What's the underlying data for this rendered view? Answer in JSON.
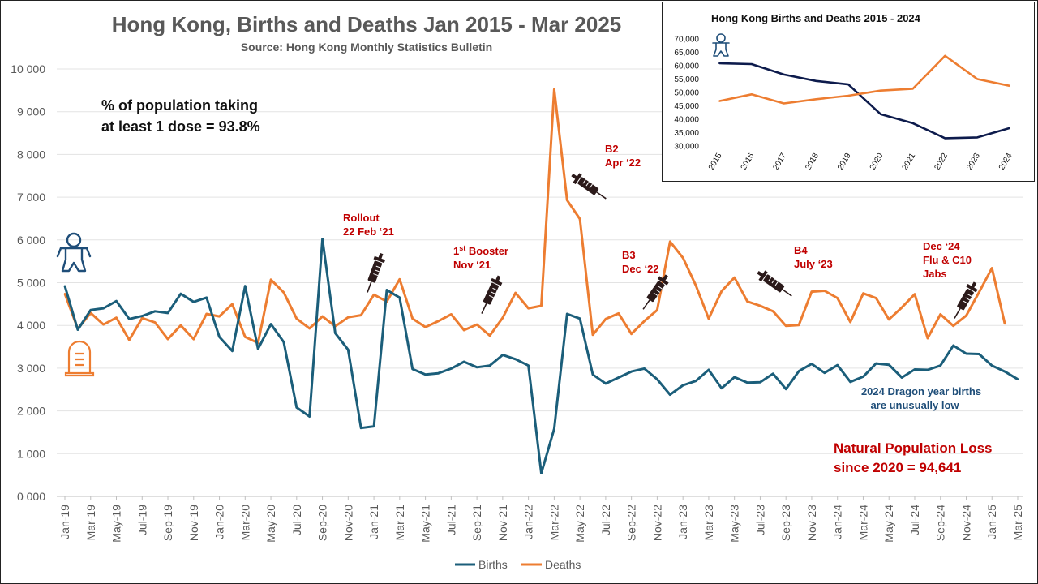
{
  "chart_data": [
    {
      "type": "line",
      "title": "Hong Kong, Births and Deaths Jan 2015 - Mar 2025",
      "subtitle": "Source: Hong Kong Monthly Statistics Bulletin",
      "ylim": [
        0,
        10000
      ],
      "y_ticks": [
        "0 000",
        "1 000",
        "2 000",
        "3 000",
        "4 000",
        "5 000",
        "6 000",
        "7 000",
        "8 000",
        "9 000",
        "10 000"
      ],
      "x_tick_labels": [
        "Jan-19",
        "Mar-19",
        "May-19",
        "Jul-19",
        "Sep-19",
        "Nov-19",
        "Jan-20",
        "Mar-20",
        "May-20",
        "Jul-20",
        "Sep-20",
        "Nov-20",
        "Jan-21",
        "Mar-21",
        "May-21",
        "Jul-21",
        "Sep-21",
        "Nov-21",
        "Jan-22",
        "Mar-22",
        "May-22",
        "Jul-22",
        "Sep-22",
        "Nov-22",
        "Jan-23",
        "Mar-23",
        "May-23",
        "Jul-23",
        "Sep-23",
        "Nov-23",
        "Jan-24",
        "Mar-24",
        "May-24",
        "Jul-24",
        "Sep-24",
        "Nov-24",
        "Jan-25",
        "Mar-25"
      ],
      "grid": true,
      "legend_position": "bottom",
      "series": [
        {
          "name": "Births",
          "color": "#1b5e7a",
          "values": [
            4920,
            3900,
            4360,
            4400,
            4570,
            4150,
            4220,
            4330,
            4290,
            4740,
            4550,
            4650,
            3730,
            3400,
            4920,
            3450,
            4030,
            3610,
            2080,
            1870,
            6020,
            3820,
            3430,
            1600,
            1640,
            4830,
            4650,
            2980,
            2850,
            2880,
            2990,
            3150,
            3020,
            3060,
            3310,
            3210,
            3060,
            540,
            1580,
            4270,
            4160,
            2850,
            2640,
            2780,
            2920,
            2990,
            2740,
            2380,
            2600,
            2700,
            2960,
            2530,
            2790,
            2660,
            2670,
            2870,
            2510,
            2930,
            3100,
            2890,
            3070,
            2680,
            2800,
            3110,
            3080,
            2780,
            2970,
            2960,
            3060,
            3530,
            3340,
            3330,
            3060,
            2920,
            2740
          ]
        },
        {
          "name": "Deaths",
          "color": "#ed7d31",
          "values": [
            4740,
            3920,
            4290,
            4020,
            4180,
            3660,
            4170,
            4070,
            3680,
            4000,
            3680,
            4270,
            4210,
            4500,
            3730,
            3590,
            5070,
            4770,
            4160,
            3930,
            4210,
            3980,
            4190,
            4240,
            4720,
            4560,
            5080,
            4160,
            3960,
            4100,
            4260,
            3890,
            4020,
            3760,
            4180,
            4760,
            4400,
            4460,
            9520,
            6930,
            6490,
            3780,
            4150,
            4280,
            3800,
            4100,
            4360,
            5960,
            5580,
            4940,
            4160,
            4800,
            5120,
            4560,
            4460,
            4330,
            3990,
            4010,
            4790,
            4810,
            4640,
            4080,
            4750,
            4640,
            4140,
            4420,
            4730,
            3700,
            4260,
            3990,
            4230,
            4780,
            5340,
            4040
          ]
        }
      ],
      "annotations": {
        "dose_line1": "% of population taking",
        "dose_line2": "at least 1 dose = 93.8%",
        "rollout_line1": "Rollout",
        "rollout_line2": "22 Feb ‘21",
        "booster_sup": "st",
        "booster_line1_a": "1",
        "booster_line1_b": " Booster",
        "booster_line2": "Nov ‘21",
        "b2_line1": "B2",
        "b2_line2": "Apr ‘22",
        "b3_line1": "B3",
        "b3_line2": "Dec ‘22",
        "b4_line1": "B4",
        "b4_line2": "July ‘23",
        "dec24_line1": "Dec ‘24",
        "dec24_line2": "Flu & C10",
        "dec24_line3": "Jabs",
        "dragon_line1": "2024 Dragon year births",
        "dragon_line2": "are unusually low",
        "loss_line1": "Natural Population Loss",
        "loss_line2": "since 2020 = 94,641"
      },
      "icons": [
        "baby-icon",
        "tombstone-icon",
        "syringe-icon"
      ]
    },
    {
      "type": "line",
      "title": "Hong Kong Births and Deaths 2015 - 2024",
      "categories": [
        "2015",
        "2016",
        "2017",
        "2018",
        "2019",
        "2020",
        "2021",
        "2022",
        "2023",
        "2024"
      ],
      "ylim": [
        30000,
        70000
      ],
      "y_ticks": [
        "30,000",
        "35,000",
        "40,000",
        "45,000",
        "50,000",
        "55,000",
        "60,000",
        "65,000",
        "70,000"
      ],
      "series": [
        {
          "name": "Births",
          "color": "#0d1b4c",
          "values": [
            60900,
            60600,
            56700,
            54300,
            53000,
            41900,
            38500,
            32900,
            33200,
            36700
          ]
        },
        {
          "name": "Deaths",
          "color": "#ed7d31",
          "values": [
            46800,
            49300,
            45900,
            47500,
            48800,
            50700,
            51400,
            63700,
            55000,
            52500
          ]
        }
      ]
    }
  ]
}
